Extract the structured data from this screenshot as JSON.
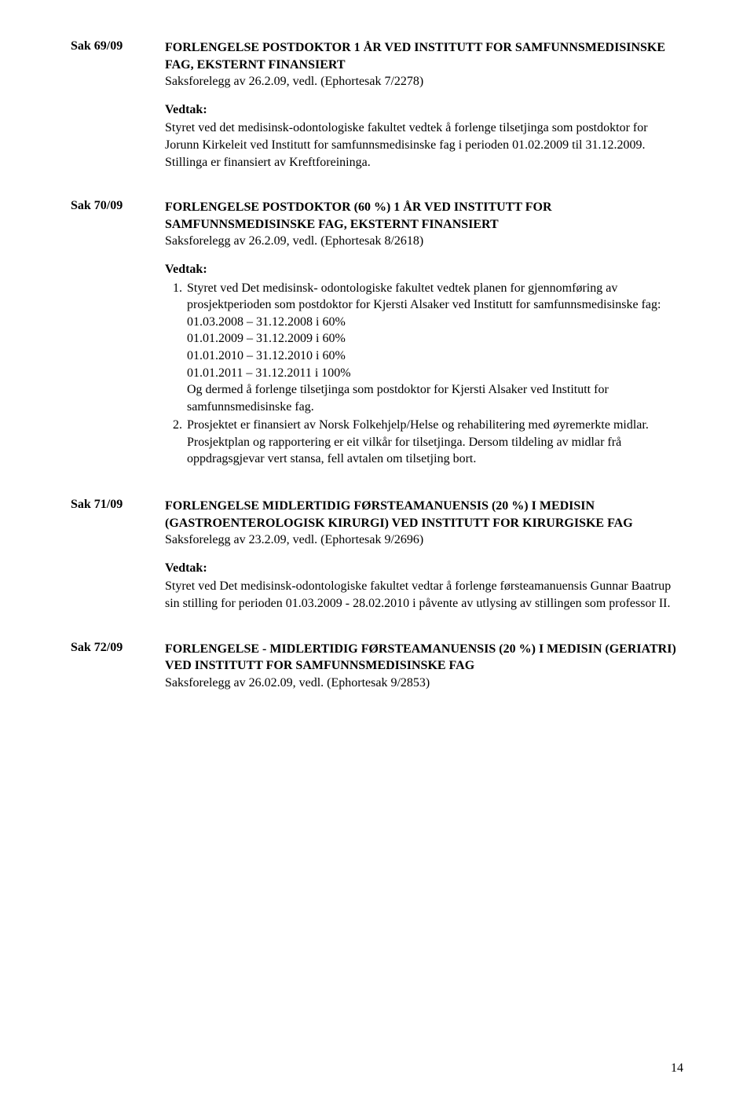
{
  "page_number": "14",
  "cases": [
    {
      "id": "Sak 69/09",
      "title": "FORLENGELSE POSTDOKTOR 1 ÅR VED INSTITUTT FOR SAMFUNNSMEDISINSKE FAG, EKSTERNT FINANSIERT",
      "ref": "Saksforelegg av 26.2.09, vedl. (Ephortesak 7/2278)",
      "vedtak_label": "Vedtak:",
      "vedtak_text": "Styret ved det medisinsk-odontologiske fakultet vedtek å forlenge tilsetjinga som postdoktor for Jorunn Kirkeleit ved Institutt for samfunnsmedisinske fag i perioden 01.02.2009 til 31.12.2009. Stillinga er finansiert av Kreftforeininga."
    },
    {
      "id": "Sak 70/09",
      "title": "FORLENGELSE POSTDOKTOR (60 %) 1 ÅR VED INSTITUTT FOR SAMFUNNSMEDISINSKE FAG, EKSTERNT FINANSIERT",
      "ref": "Saksforelegg av 26.2.09, vedl. (Ephortesak 8/2618)",
      "vedtak_label": "Vedtak:",
      "list": [
        "Styret ved Det medisinsk- odontologiske fakultet vedtek planen for gjennomføring av prosjektperioden som postdoktor for Kjersti Alsaker ved Institutt for samfunnsmedisinske fag:\n01.03.2008 – 31.12.2008  i 60%\n01.01.2009 – 31.12.2009  i 60%\n01.01.2010 – 31.12.2010 i  60%\n01.01.2011 – 31.12.2011 i 100%\nOg dermed å forlenge tilsetjinga som postdoktor for Kjersti Alsaker ved Institutt for samfunnsmedisinske fag.",
        "Prosjektet er finansiert av Norsk Folkehjelp/Helse og rehabilitering med øyremerkte midlar. Prosjektplan og rapportering er eit vilkår for tilsetjinga. Dersom tildeling av midlar frå oppdragsgjevar vert stansa, fell avtalen om tilsetjing bort."
      ]
    },
    {
      "id": "Sak 71/09",
      "title": "FORLENGELSE MIDLERTIDIG FØRSTEAMANUENSIS (20 %) I MEDISIN (GASTROENTEROLOGISK KIRURGI) VED INSTITUTT FOR KIRURGISKE FAG",
      "ref": "Saksforelegg av 23.2.09, vedl. (Ephortesak 9/2696)",
      "vedtak_label": "Vedtak:",
      "vedtak_text": "Styret ved Det medisinsk-odontologiske fakultet vedtar å forlenge førsteamanuensis Gunnar Baatrup sin stilling for perioden 01.03.2009 - 28.02.2010 i påvente av utlysing av stillingen som professor II."
    },
    {
      "id": "Sak 72/09",
      "title": "FORLENGELSE - MIDLERTIDIG FØRSTEAMANUENSIS (20 %) I MEDISIN (GERIATRI) VED INSTITUTT FOR SAMFUNNSMEDISINSKE FAG",
      "ref": "Saksforelegg av 26.02.09, vedl. (Ephortesak 9/2853)"
    }
  ]
}
